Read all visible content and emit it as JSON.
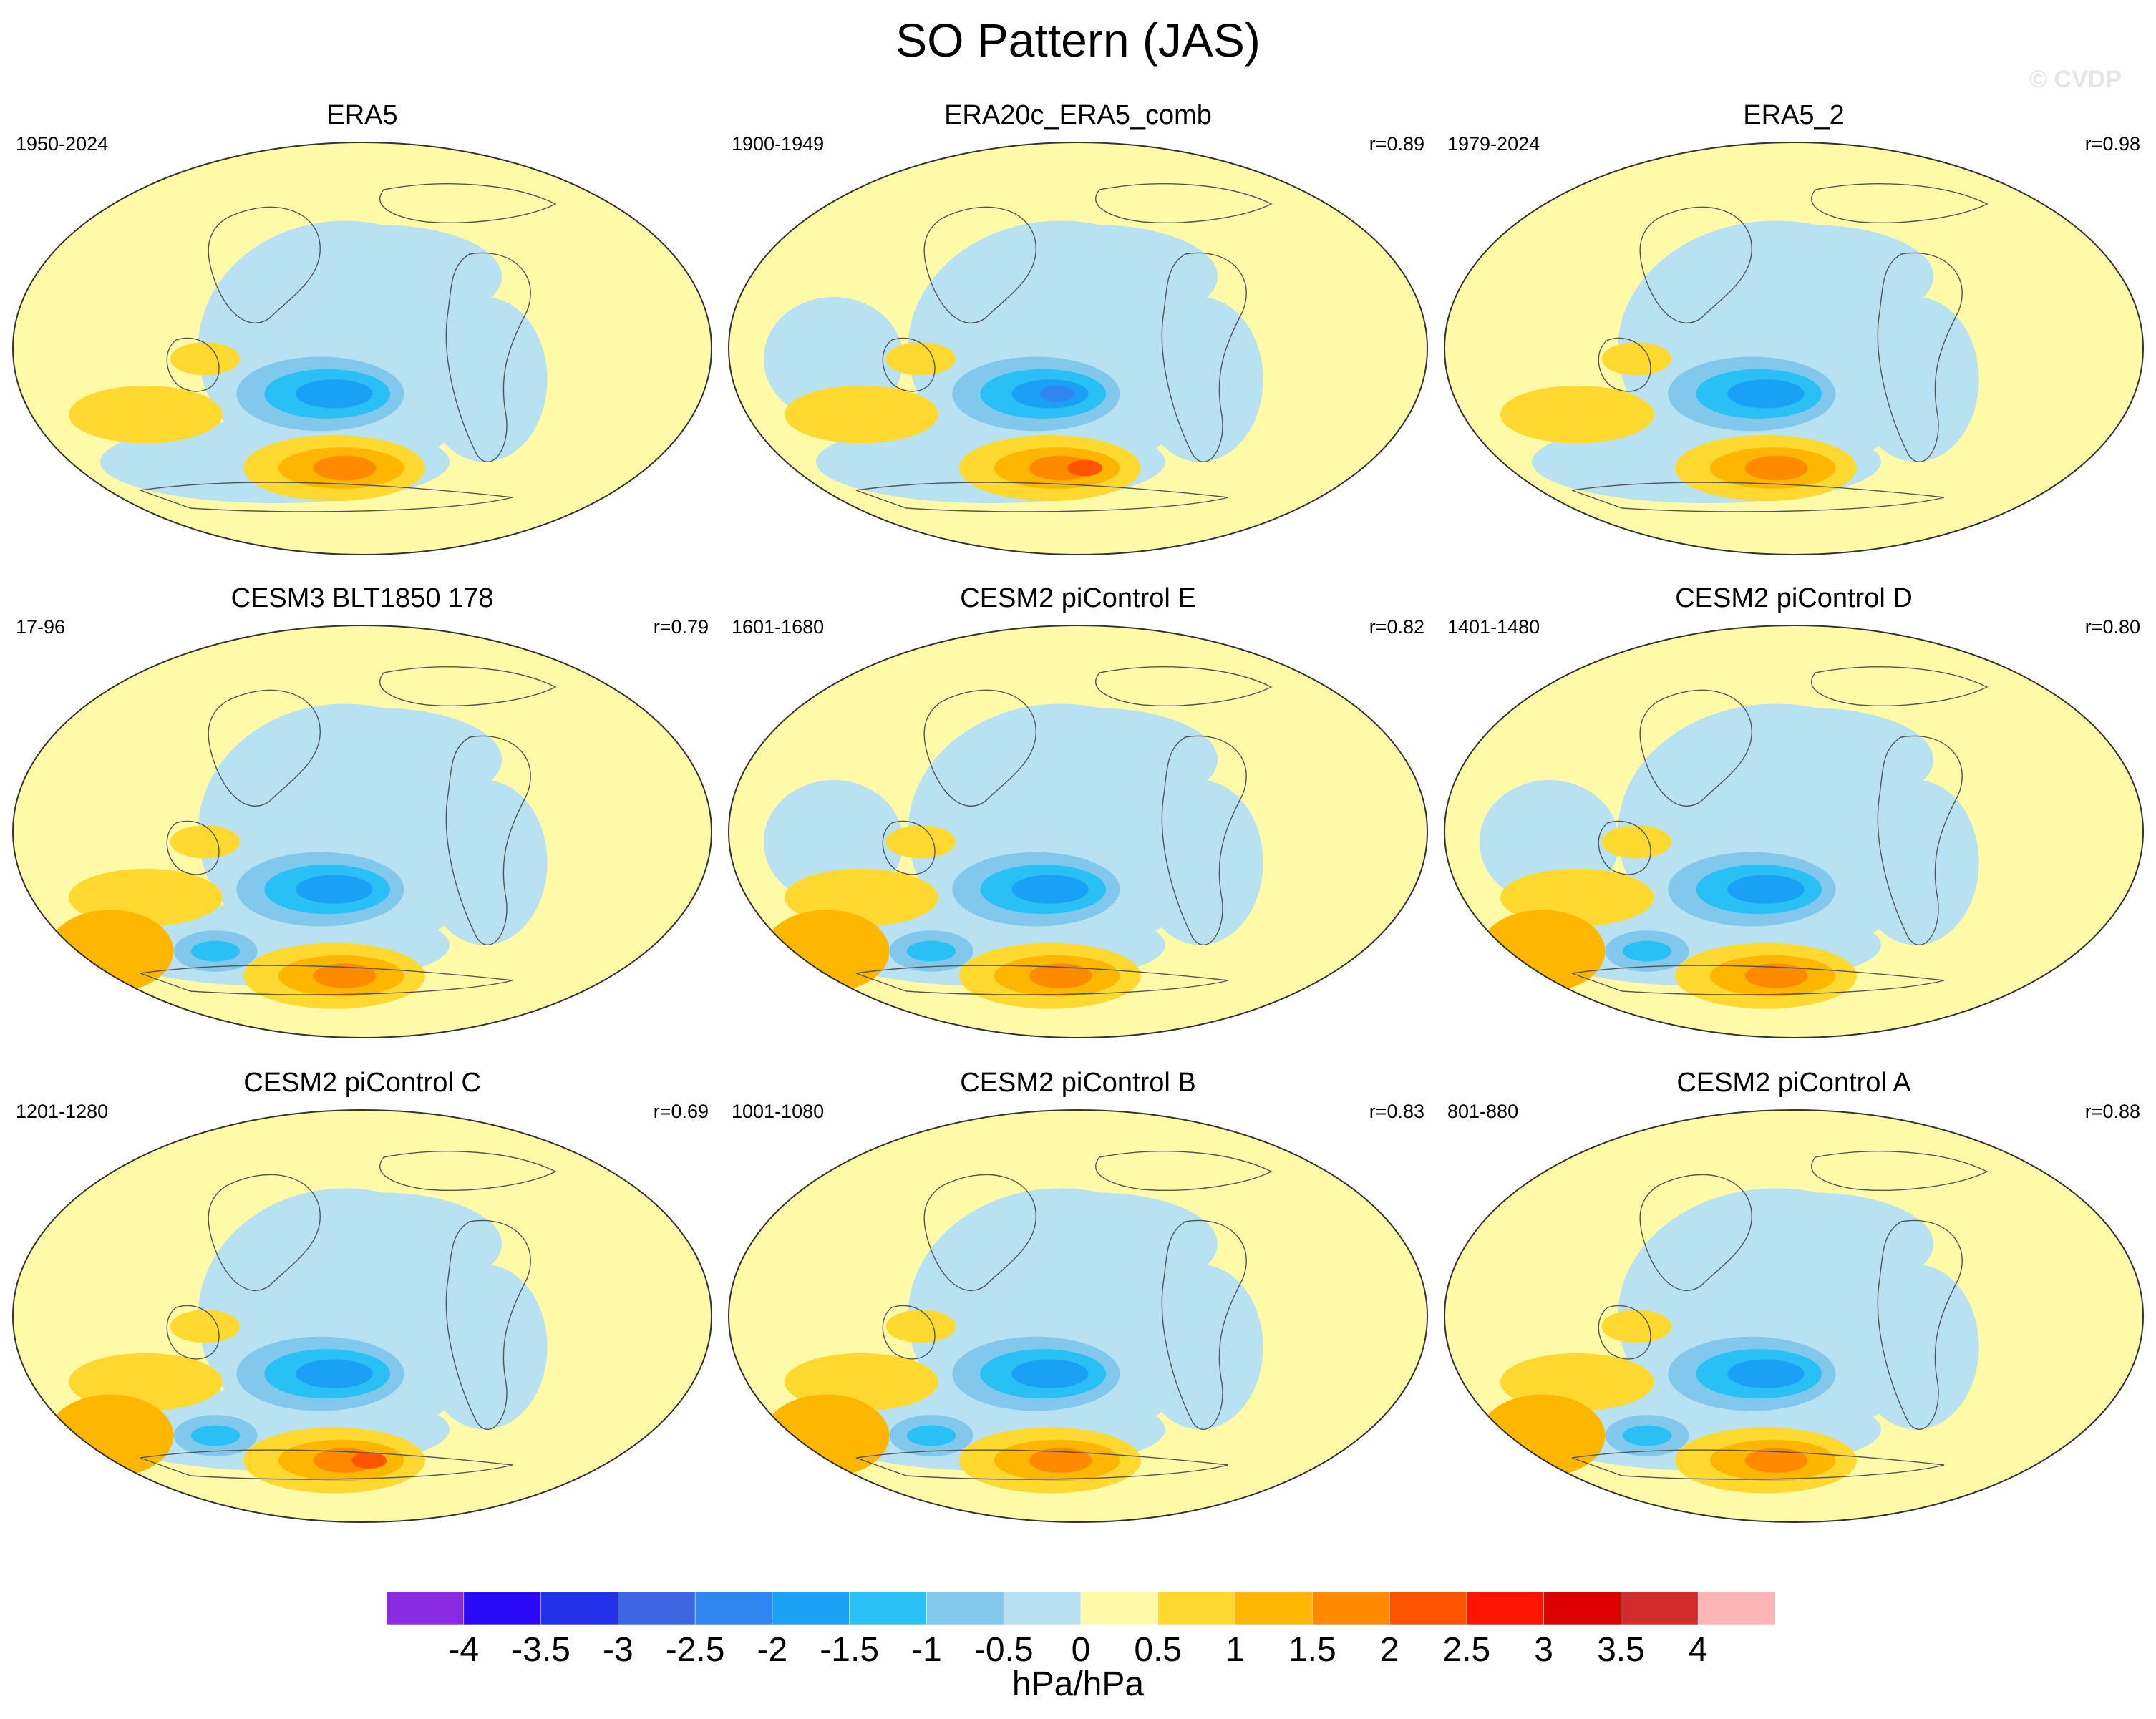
{
  "title": "SO Pattern (JAS)",
  "watermark": "© CVDP",
  "panels": [
    {
      "title": "ERA5",
      "period": "1950-2024",
      "corr": "",
      "variant": 0
    },
    {
      "title": "ERA20c_ERA5_comb",
      "period": "1900-1949",
      "corr": "r=0.89",
      "variant": 1
    },
    {
      "title": "ERA5_2",
      "period": "1979-2024",
      "corr": "r=0.98",
      "variant": 2
    },
    {
      "title": "CESM3 BLT1850 178",
      "period": "17-96",
      "corr": "r=0.79",
      "variant": 3
    },
    {
      "title": "CESM2 piControl E",
      "period": "1601-1680",
      "corr": "r=0.82",
      "variant": 4
    },
    {
      "title": "CESM2 piControl D",
      "period": "1401-1480",
      "corr": "r=0.80",
      "variant": 5
    },
    {
      "title": "CESM2 piControl C",
      "period": "1201-1280",
      "corr": "r=0.69",
      "variant": 6
    },
    {
      "title": "CESM2 piControl B",
      "period": "1001-1080",
      "corr": "r=0.83",
      "variant": 7
    },
    {
      "title": "CESM2 piControl A",
      "period": "801-880",
      "corr": "r=0.88",
      "variant": 8
    }
  ],
  "colorbar": {
    "labels": [
      "-4",
      "-3.5",
      "-3",
      "-2.5",
      "-2",
      "-1.5",
      "-1",
      "-0.5",
      "0",
      "0.5",
      "1",
      "1.5",
      "2",
      "2.5",
      "3",
      "3.5",
      "4"
    ],
    "colors": [
      "#8a2be2",
      "#2a0af5",
      "#2233ea",
      "#3d66e2",
      "#2f86f0",
      "#1aa0f5",
      "#28c0f5",
      "#82c8ec",
      "#b8e1f1",
      "#fffaa8",
      "#ffd930",
      "#ffb600",
      "#ff8a00",
      "#ff5500",
      "#ff1500",
      "#dd0000",
      "#d22b2b",
      "#ffb5b5"
    ],
    "units": "hPa/hPa"
  }
}
